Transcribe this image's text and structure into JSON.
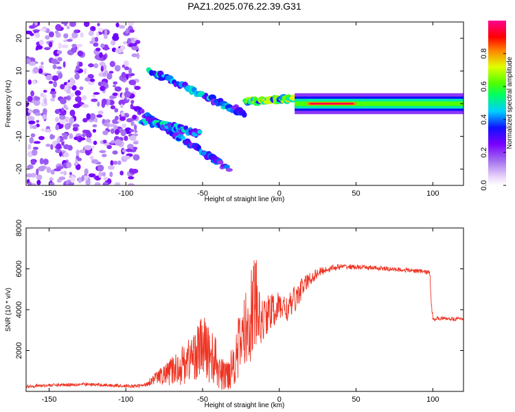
{
  "figure": {
    "title": "PAZ1.2025.076.22.39.G31"
  },
  "chart_data": [
    {
      "type": "heatmap",
      "xlabel": "Height of straight line (km)",
      "ylabel": "Frequency (Hz)",
      "xlim": [
        -165,
        120
      ],
      "ylim": [
        -25,
        25
      ],
      "x_ticks": [
        -150,
        -100,
        -50,
        0,
        50,
        100
      ],
      "y_ticks": [
        -20,
        -10,
        0,
        10,
        20
      ],
      "grid": false,
      "colorbar": {
        "label": "Normalized spectral amplitude",
        "range": [
          0.0,
          1.0
        ],
        "ticks": [
          "0.0",
          "0.2",
          "0.4",
          "0.6",
          "0.8"
        ],
        "tick_values": [
          0.0,
          0.2,
          0.4,
          0.6,
          0.8
        ],
        "colors": [
          "#ffffff",
          "#ead6fb",
          "#a36ff0",
          "#7a00ff",
          "#1010ff",
          "#00d0ff",
          "#00ff60",
          "#50ff00",
          "#e0ff00",
          "#ff8000",
          "#ff0000",
          "#ff0090"
        ],
        "stops": [
          0.0,
          0.05,
          0.15,
          0.25,
          0.35,
          0.45,
          0.55,
          0.62,
          0.72,
          0.82,
          0.9,
          1.0
        ]
      },
      "features": [
        {
          "kind": "scatter_noise",
          "x_range": [
            -165,
            -92
          ],
          "y_range": [
            -25,
            25
          ],
          "amplitude": 0.12
        },
        {
          "kind": "track",
          "from": [
            -92,
            -2
          ],
          "to": [
            -33,
            -20
          ],
          "amplitude": 0.3
        },
        {
          "kind": "track",
          "from": [
            -90,
            -5
          ],
          "to": [
            -52,
            -9
          ],
          "amplitude": 0.35
        },
        {
          "kind": "track",
          "from": [
            -85,
            10
          ],
          "to": [
            -23,
            -3
          ],
          "amplitude": 0.35
        },
        {
          "kind": "track",
          "from": [
            -22,
            0.5
          ],
          "to": [
            10,
            1.5
          ],
          "amplitude": 0.5
        },
        {
          "kind": "band",
          "x_range": [
            10,
            120
          ],
          "center": 0,
          "amplitude": 0.5,
          "peak_x": [
            18,
            50
          ],
          "peak_amplitude": 0.95
        }
      ]
    },
    {
      "type": "line",
      "xlabel": "Height of straight line (km)",
      "ylabel": "SNR (10 * v/v)",
      "xlim": [
        -165,
        120
      ],
      "ylim": [
        0,
        8000
      ],
      "x_ticks": [
        -150,
        -100,
        -50,
        0,
        50,
        100
      ],
      "y_ticks": [
        2000,
        4000,
        6000,
        8000
      ],
      "grid": false,
      "series": [
        {
          "color": "#ee3322",
          "x": [
            -165,
            -150,
            -130,
            -110,
            -95,
            -88,
            -84,
            -80,
            -75,
            -70,
            -65,
            -60,
            -55,
            -50,
            -46,
            -42,
            -38,
            -35,
            -32,
            -28,
            -25,
            -22,
            -20,
            -18,
            -16,
            -14,
            -12,
            -10,
            -8,
            -5,
            -2,
            0,
            3,
            6,
            9,
            12,
            15,
            20,
            25,
            30,
            35,
            40,
            45,
            50,
            60,
            70,
            80,
            90,
            95,
            98,
            99,
            100,
            102,
            105,
            110,
            120
          ],
          "y": [
            250,
            300,
            350,
            300,
            250,
            300,
            500,
            700,
            800,
            1000,
            1200,
            1500,
            1800,
            2200,
            1900,
            1500,
            800,
            800,
            1100,
            1800,
            2500,
            3000,
            3400,
            3800,
            4500,
            3800,
            3300,
            3600,
            3800,
            3900,
            4000,
            4200,
            4100,
            4000,
            4400,
            4700,
            5100,
            5500,
            5800,
            5950,
            6050,
            6100,
            6100,
            6080,
            6050,
            6000,
            5950,
            5900,
            5850,
            5800,
            4500,
            3600,
            3550,
            3580,
            3550,
            3550
          ],
          "noise": [
            80,
            80,
            90,
            80,
            80,
            100,
            200,
            300,
            500,
            700,
            900,
            1100,
            1300,
            1600,
            1500,
            1300,
            800,
            900,
            1000,
            1400,
            1700,
            1900,
            2000,
            2400,
            3200,
            1500,
            1100,
            1100,
            1000,
            900,
            800,
            700,
            700,
            700,
            700,
            600,
            500,
            350,
            250,
            180,
            150,
            140,
            130,
            120,
            110,
            110,
            110,
            110,
            120,
            150,
            300,
            150,
            100,
            90,
            90,
            90
          ]
        }
      ]
    }
  ]
}
